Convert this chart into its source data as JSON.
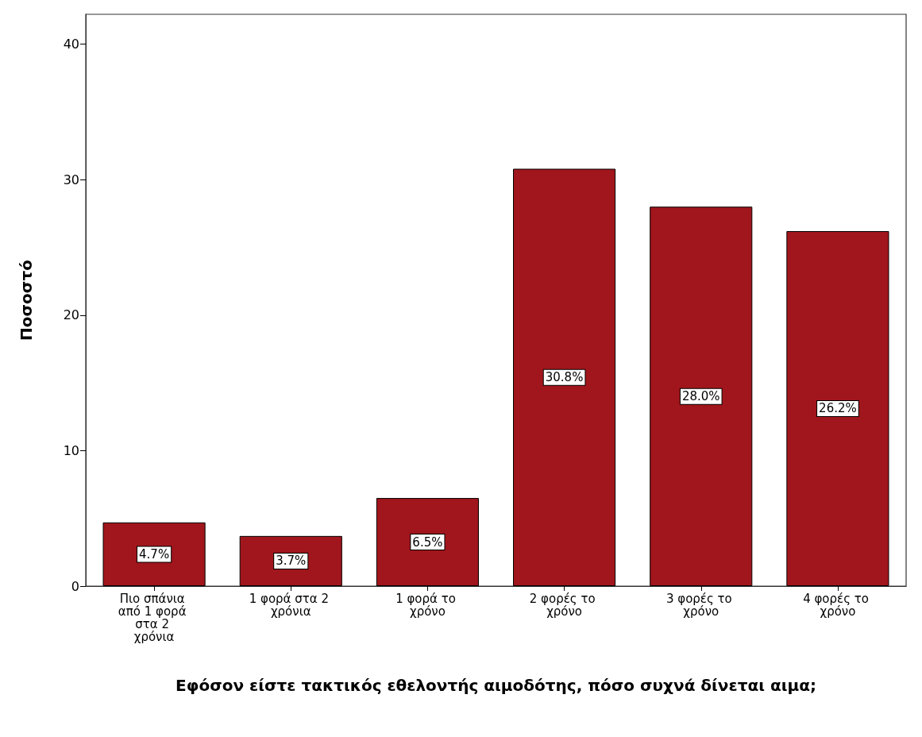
{
  "chart_data": {
    "type": "bar",
    "xlabel": "Εφόσον είστε τακτικός εθελοντής αιμοδότης, πόσο συχνά δίνεται αιμα;",
    "ylabel": "Ποσοστό",
    "categories": [
      "Πιο σπάνια από 1 φορά στα 2 χρόνια",
      "1 φορά στα 2 χρόνια",
      "1 φορά το χρόνο",
      "2 φορές το χρόνο",
      "3 φορές το χρόνο",
      "4 φορές το χρόνο"
    ],
    "values": [
      4.7,
      3.7,
      6.5,
      30.8,
      28.0,
      26.2
    ],
    "value_labels": [
      "4.7%",
      "3.7%",
      "6.5%",
      "30.8%",
      "28.0%",
      "26.2%"
    ],
    "color": "#a0161c",
    "ylim": [
      0,
      42.2
    ],
    "yticks": [
      0,
      10,
      20,
      30,
      40
    ],
    "grid": false
  }
}
